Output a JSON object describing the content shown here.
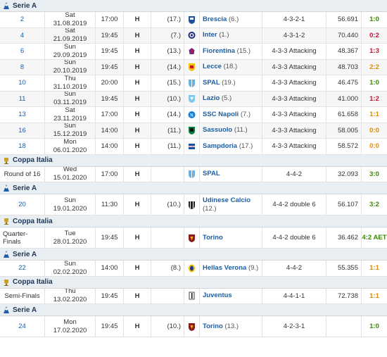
{
  "colors": {
    "win": "#3a8a00",
    "loss": "#c8102e",
    "draw": "#e08a00",
    "link": "#1a5fa8"
  },
  "rows": [
    {
      "type": "comp",
      "name": "Serie A",
      "icon": "serie-a-icon"
    },
    {
      "md": "2",
      "date": "Sat 31.08.2019",
      "time": "17:00",
      "venue": "H",
      "rank": "(17.)",
      "opp": "Brescia",
      "opp_rank": "(6.)",
      "form": "4-3-2-1",
      "att": "56.691",
      "res": "1:0",
      "rc": "win",
      "logo": "brescia-logo"
    },
    {
      "md": "4",
      "date": "Sat 21.09.2019",
      "time": "19:45",
      "venue": "H",
      "rank": "(7.)",
      "opp": "Inter",
      "opp_rank": "(1.)",
      "form": "4-3-1-2",
      "att": "70.440",
      "res": "0:2",
      "rc": "loss",
      "logo": "inter-logo"
    },
    {
      "md": "6",
      "date": "Sun 29.09.2019",
      "time": "19:45",
      "venue": "H",
      "rank": "(13.)",
      "opp": "Fiorentina",
      "opp_rank": "(15.)",
      "form": "4-3-3 Attacking",
      "att": "48.367",
      "res": "1:3",
      "rc": "loss",
      "logo": "fiorentina-logo"
    },
    {
      "md": "8",
      "date": "Sun 20.10.2019",
      "time": "19:45",
      "venue": "H",
      "rank": "(14.)",
      "opp": "Lecce",
      "opp_rank": "(18.)",
      "form": "4-3-3 Attacking",
      "att": "48.703",
      "res": "2:2",
      "rc": "draw",
      "logo": "lecce-logo"
    },
    {
      "md": "10",
      "date": "Thu 31.10.2019",
      "time": "20:00",
      "venue": "H",
      "rank": "(15.)",
      "opp": "SPAL",
      "opp_rank": "(19.)",
      "form": "4-3-3 Attacking",
      "att": "46.475",
      "res": "1:0",
      "rc": "win",
      "logo": "spal-logo"
    },
    {
      "md": "11",
      "date": "Sun 03.11.2019",
      "time": "19:45",
      "venue": "H",
      "rank": "(10.)",
      "opp": "Lazio",
      "opp_rank": "(5.)",
      "form": "4-3-3 Attacking",
      "att": "41.000",
      "res": "1:2",
      "rc": "loss",
      "logo": "lazio-logo"
    },
    {
      "md": "13",
      "date": "Sat 23.11.2019",
      "time": "17:00",
      "venue": "H",
      "rank": "(14.)",
      "opp": "SSC Napoli",
      "opp_rank": "(7.)",
      "form": "4-3-3 Attacking",
      "att": "61.658",
      "res": "1:1",
      "rc": "draw",
      "logo": "napoli-logo"
    },
    {
      "md": "16",
      "date": "Sun 15.12.2019",
      "time": "14:00",
      "venue": "H",
      "rank": "(11.)",
      "opp": "Sassuolo",
      "opp_rank": "(11.)",
      "form": "4-3-3 Attacking",
      "att": "58.005",
      "res": "0:0",
      "rc": "draw",
      "logo": "sassuolo-logo"
    },
    {
      "md": "18",
      "date": "Mon 06.01.2020",
      "time": "14:00",
      "venue": "H",
      "rank": "(11.)",
      "opp": "Sampdoria",
      "opp_rank": "(17.)",
      "form": "4-3-3 Attacking",
      "att": "58.572",
      "res": "0:0",
      "rc": "draw",
      "logo": "sampdoria-logo"
    },
    {
      "type": "comp",
      "name": "Coppa Italia",
      "icon": "coppa-italia-icon"
    },
    {
      "md": "Round of 16",
      "md_black": true,
      "date": "Wed 15.01.2020",
      "time": "17:00",
      "venue": "H",
      "rank": "",
      "opp": "SPAL",
      "opp_rank": "",
      "form": "4-4-2",
      "att": "32.093",
      "res": "3:0",
      "rc": "win",
      "logo": "spal-logo"
    },
    {
      "type": "comp",
      "name": "Serie A",
      "icon": "serie-a-icon"
    },
    {
      "md": "20",
      "date": "Sun 19.01.2020",
      "time": "11:30",
      "venue": "H",
      "rank": "(10.)",
      "opp": "Udinese Calcio",
      "opp_rank": "(12.)",
      "form": "4-4-2 double 6",
      "att": "56.107",
      "res": "3:2",
      "rc": "win",
      "logo": "udinese-logo",
      "tall": true
    },
    {
      "type": "comp",
      "name": "Coppa Italia",
      "icon": "coppa-italia-icon"
    },
    {
      "md": "Quarter-Finals",
      "md_black": true,
      "date": "Tue 28.01.2020",
      "time": "19:45",
      "venue": "H",
      "rank": "",
      "opp": "Torino",
      "opp_rank": "",
      "form": "4-4-2 double 6",
      "att": "36.462",
      "res": "4:2 AET",
      "rc": "win",
      "logo": "torino-logo",
      "tall": true
    },
    {
      "type": "comp",
      "name": "Serie A",
      "icon": "serie-a-icon"
    },
    {
      "md": "22",
      "date": "Sun 02.02.2020",
      "time": "14:00",
      "venue": "H",
      "rank": "(8.)",
      "opp": "Hellas Verona",
      "opp_rank": "(9.)",
      "form": "4-4-2",
      "att": "55.355",
      "res": "1:1",
      "rc": "draw",
      "logo": "verona-logo"
    },
    {
      "type": "comp",
      "name": "Coppa Italia",
      "icon": "coppa-italia-icon"
    },
    {
      "md": "Semi-Finals",
      "md_black": true,
      "date": "Thu 13.02.2020",
      "time": "19:45",
      "venue": "H",
      "rank": "",
      "opp": "Juventus",
      "opp_rank": "",
      "form": "4-4-1-1",
      "att": "72.738",
      "res": "1:1",
      "rc": "draw",
      "logo": "juventus-logo"
    },
    {
      "type": "comp",
      "name": "Serie A",
      "icon": "serie-a-icon"
    },
    {
      "md": "24",
      "date": "Mon 17.02.2020",
      "time": "19:45",
      "venue": "H",
      "rank": "(10.)",
      "opp": "Torino",
      "opp_rank": "(13.)",
      "form": "4-2-3-1",
      "att": "",
      "res": "1:0",
      "rc": "win",
      "logo": "torino-logo",
      "tall": true
    }
  ]
}
